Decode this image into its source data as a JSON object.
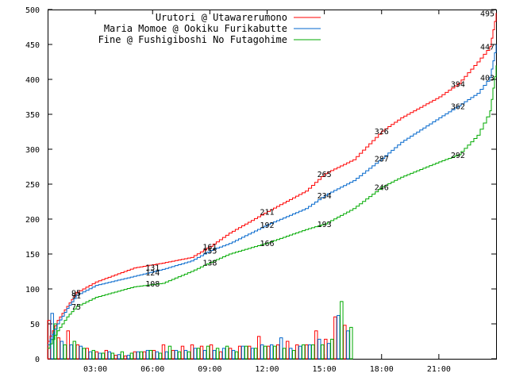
{
  "chart_data": {
    "type": "line",
    "title": "",
    "xlabel": "",
    "ylabel": "",
    "ylim": [
      0,
      500
    ],
    "xlim": [
      "00:30",
      "24:00"
    ],
    "x_ticks": [
      "03:00",
      "06:00",
      "09:00",
      "12:00",
      "15:00",
      "18:00",
      "21:00"
    ],
    "y_ticks": [
      0,
      50,
      100,
      150,
      200,
      250,
      300,
      350,
      400,
      450,
      500
    ],
    "grid": false,
    "legend_position": "top-right",
    "series": [
      {
        "name": "Urutori @ Utawarerumono",
        "color": "#ff0000",
        "x": [
          "00:30",
          "01:00",
          "01:30",
          "02:00",
          "03:00",
          "05:00",
          "06:30",
          "08:00",
          "09:00",
          "10:00",
          "12:00",
          "14:00",
          "15:00",
          "16:30",
          "18:00",
          "19:00",
          "21:00",
          "22:00",
          "23:00",
          "23:40",
          "24:00"
        ],
        "values": [
          25,
          55,
          75,
          95,
          110,
          130,
          137,
          145,
          161,
          180,
          211,
          240,
          265,
          285,
          326,
          345,
          375,
          394,
          425,
          447,
          495
        ],
        "labels": [
          {
            "x": "02:00",
            "text": "95"
          },
          {
            "x": "06:00",
            "text": "131"
          },
          {
            "x": "09:00",
            "text": "161"
          },
          {
            "x": "12:00",
            "text": "211"
          },
          {
            "x": "15:00",
            "text": "265"
          },
          {
            "x": "18:00",
            "text": "326"
          },
          {
            "x": "22:00",
            "text": "394"
          },
          {
            "x": "23:40",
            "text": "447"
          },
          {
            "x": "24:00",
            "text": "495"
          }
        ]
      },
      {
        "name": "Maria Momoe @ Ookiku Furikabutte",
        "color": "#0066cc",
        "x": [
          "00:30",
          "01:00",
          "01:30",
          "02:00",
          "03:00",
          "05:00",
          "06:30",
          "08:00",
          "09:00",
          "10:00",
          "12:00",
          "14:00",
          "15:00",
          "16:30",
          "18:00",
          "19:00",
          "21:00",
          "22:00",
          "23:00",
          "23:40",
          "24:00"
        ],
        "values": [
          20,
          50,
          72,
          91,
          105,
          118,
          128,
          140,
          155,
          165,
          192,
          215,
          234,
          255,
          287,
          310,
          345,
          362,
          380,
          403,
          450
        ],
        "labels": [
          {
            "x": "02:00",
            "text": "91"
          },
          {
            "x": "06:00",
            "text": "124"
          },
          {
            "x": "09:00",
            "text": "155"
          },
          {
            "x": "12:00",
            "text": "192"
          },
          {
            "x": "15:00",
            "text": "234"
          },
          {
            "x": "18:00",
            "text": "287"
          },
          {
            "x": "22:00",
            "text": "362"
          },
          {
            "x": "23:40",
            "text": "403"
          }
        ]
      },
      {
        "name": "Fine @ Fushigiboshi No Futagohime",
        "color": "#00aa00",
        "x": [
          "00:30",
          "01:00",
          "01:30",
          "02:00",
          "03:00",
          "05:00",
          "06:30",
          "08:00",
          "09:00",
          "10:00",
          "12:00",
          "14:00",
          "15:00",
          "16:30",
          "18:00",
          "19:00",
          "21:00",
          "22:00",
          "23:00",
          "23:40",
          "24:00"
        ],
        "values": [
          15,
          40,
          60,
          75,
          88,
          103,
          108,
          125,
          138,
          150,
          166,
          185,
          193,
          215,
          246,
          260,
          282,
          292,
          320,
          355,
          420
        ],
        "labels": [
          {
            "x": "02:00",
            "text": "75"
          },
          {
            "x": "06:00",
            "text": "108"
          },
          {
            "x": "09:00",
            "text": "138"
          },
          {
            "x": "12:00",
            "text": "166"
          },
          {
            "x": "15:00",
            "text": "193"
          },
          {
            "x": "18:00",
            "text": "246"
          },
          {
            "x": "22:00",
            "text": "292"
          }
        ]
      }
    ],
    "bars": {
      "bin_start": "00:30",
      "bin_minutes": 30,
      "counts": [
        [
          55,
          30,
          40,
          20,
          15,
          10,
          12,
          5,
          4,
          10,
          10,
          12,
          20,
          12,
          18,
          20,
          18,
          20,
          10,
          15,
          18,
          18,
          32,
          18,
          20,
          25,
          20,
          20,
          40,
          28,
          60,
          48
        ],
        [
          65,
          25,
          20,
          18,
          10,
          8,
          10,
          6,
          5,
          10,
          12,
          10,
          10,
          12,
          12,
          15,
          12,
          12,
          15,
          12,
          18,
          15,
          20,
          20,
          30,
          15,
          18,
          20,
          28,
          22,
          62,
          40
        ],
        [
          50,
          20,
          25,
          15,
          12,
          8,
          8,
          10,
          8,
          10,
          12,
          8,
          18,
          10,
          10,
          15,
          18,
          15,
          18,
          10,
          18,
          15,
          18,
          18,
          15,
          12,
          20,
          20,
          20,
          28,
          82,
          45
        ]
      ]
    }
  }
}
